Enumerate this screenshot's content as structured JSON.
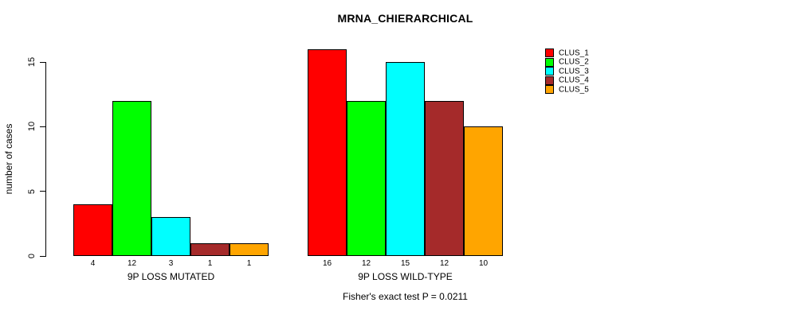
{
  "chart_data": {
    "type": "bar",
    "title": "MRNA_CHIERARCHICAL",
    "ylabel": "number of cases",
    "xlabel": "",
    "categories": [
      "9P LOSS MUTATED",
      "9P LOSS WILD-TYPE"
    ],
    "series": [
      {
        "name": "CLUS_1",
        "color": "#FF0000",
        "values": [
          4,
          16
        ]
      },
      {
        "name": "CLUS_2",
        "color": "#00FF00",
        "values": [
          12,
          12
        ]
      },
      {
        "name": "CLUS_3",
        "color": "#00FFFF",
        "values": [
          3,
          15
        ]
      },
      {
        "name": "CLUS_4",
        "color": "#A52A2A",
        "values": [
          1,
          12
        ]
      },
      {
        "name": "CLUS_5",
        "color": "#FFA500",
        "values": [
          1,
          10
        ]
      }
    ],
    "yticks": [
      0,
      5,
      10,
      15
    ],
    "ylim": [
      0,
      15
    ],
    "bar_value_labels": true,
    "grid": false,
    "legend_position": "top-right",
    "annotation": "Fisher's exact test P = 0.0211",
    "axis_color": "#000000",
    "background_color": "#FFFFFF"
  }
}
